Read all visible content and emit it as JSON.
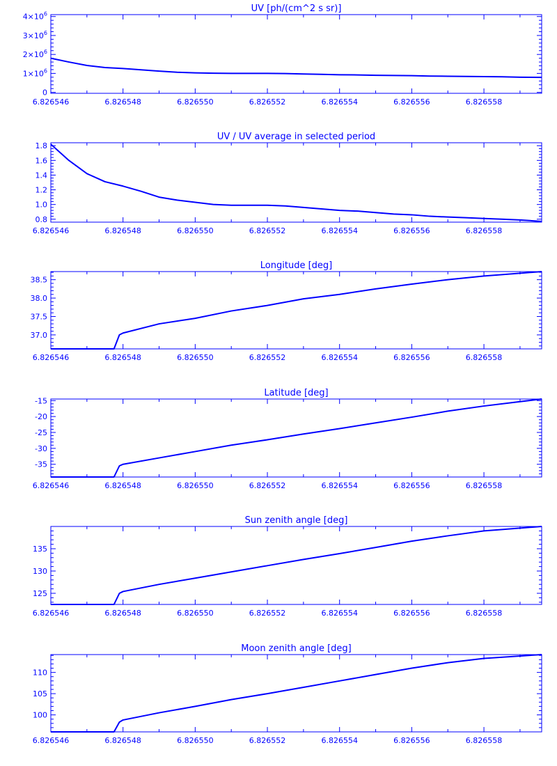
{
  "style": {
    "color": "#0000ff",
    "background": "#ffffff"
  },
  "x_tick_labels": [
    "6.826546",
    "6.826548",
    "6.826550",
    "6.826552",
    "6.826554",
    "6.826556",
    "6.826558"
  ],
  "chart_data": [
    {
      "type": "line",
      "title": "UV [ph/(cm^2 s sr)]",
      "xlim": [
        6.826546,
        6.8265596
      ],
      "ylim": [
        -50000.0,
        4100000.0
      ],
      "yticks": [
        0,
        1000000,
        2000000,
        3000000,
        4000000
      ],
      "ytick_labels": [
        {
          "mantissa": "0",
          "exp": ""
        },
        {
          "mantissa": "1×10",
          "exp": "6"
        },
        {
          "mantissa": "2×10",
          "exp": "6"
        },
        {
          "mantissa": "3×10",
          "exp": "6"
        },
        {
          "mantissa": "4×10",
          "exp": "6"
        }
      ],
      "x": [
        6.826546,
        6.8265465,
        6.826547,
        6.8265475,
        6.826548,
        6.8265485,
        6.826549,
        6.8265495,
        6.82655,
        6.8265505,
        6.826551,
        6.8265515,
        6.826552,
        6.8265525,
        6.826553,
        6.8265535,
        6.826554,
        6.8265545,
        6.826555,
        6.8265555,
        6.826556,
        6.8265565,
        6.826557,
        6.8265575,
        6.826558,
        6.8265585,
        6.826559,
        6.8265596
      ],
      "y": [
        1800000,
        1600000,
        1420000,
        1310000,
        1260000,
        1190000,
        1120000,
        1060000,
        1030000,
        1010000,
        1000000,
        1000000,
        1000000,
        990000,
        970000,
        950000,
        930000,
        920000,
        900000,
        890000,
        880000,
        860000,
        850000,
        840000,
        830000,
        820000,
        800000,
        790000
      ]
    },
    {
      "type": "line",
      "title": "UV / UV average in selected period",
      "xlim": [
        6.826546,
        6.8265596
      ],
      "ylim": [
        0.76,
        1.84
      ],
      "yticks": [
        0.8,
        1.0,
        1.2,
        1.4,
        1.6,
        1.8
      ],
      "ytick_labels": [
        "0.8",
        "1.0",
        "1.2",
        "1.4",
        "1.6",
        "1.8"
      ],
      "x": [
        6.826546,
        6.8265465,
        6.826547,
        6.8265475,
        6.826548,
        6.8265485,
        6.826549,
        6.8265495,
        6.82655,
        6.8265505,
        6.826551,
        6.8265515,
        6.826552,
        6.8265525,
        6.826553,
        6.8265535,
        6.826554,
        6.8265545,
        6.826555,
        6.8265555,
        6.826556,
        6.8265565,
        6.826557,
        6.8265575,
        6.826558,
        6.8265585,
        6.826559,
        6.8265596
      ],
      "y": [
        1.82,
        1.6,
        1.42,
        1.31,
        1.25,
        1.18,
        1.1,
        1.06,
        1.03,
        1.0,
        0.99,
        0.99,
        0.99,
        0.98,
        0.96,
        0.94,
        0.92,
        0.91,
        0.89,
        0.87,
        0.86,
        0.84,
        0.83,
        0.82,
        0.81,
        0.8,
        0.79,
        0.77
      ]
    },
    {
      "type": "line",
      "title": "Longitude [deg]",
      "xlim": [
        6.826546,
        6.8265596
      ],
      "ylim": [
        36.62,
        38.72
      ],
      "yticks": [
        37.0,
        37.5,
        38.0,
        38.5
      ],
      "ytick_labels": [
        "37.0",
        "37.5",
        "38.0",
        "38.5"
      ],
      "x": [
        6.826546,
        6.82654775,
        6.8265479,
        6.826548,
        6.826549,
        6.82655,
        6.826551,
        6.826552,
        6.826553,
        6.826554,
        6.826555,
        6.826556,
        6.826557,
        6.826558,
        6.8265596
      ],
      "y": [
        36.62,
        36.62,
        37.0,
        37.05,
        37.3,
        37.45,
        37.65,
        37.8,
        37.98,
        38.1,
        38.25,
        38.38,
        38.5,
        38.6,
        38.72
      ]
    },
    {
      "type": "line",
      "title": "Latitude [deg]",
      "xlim": [
        6.826546,
        6.8265596
      ],
      "ylim": [
        -39.0,
        -14.5
      ],
      "yticks": [
        -35,
        -30,
        -25,
        -20,
        -15
      ],
      "ytick_labels": [
        "-35",
        "-30",
        "-25",
        "-20",
        "-15"
      ],
      "x": [
        6.826546,
        6.82654775,
        6.8265479,
        6.826548,
        6.826549,
        6.82655,
        6.826551,
        6.826552,
        6.826553,
        6.826554,
        6.826555,
        6.826556,
        6.826557,
        6.826558,
        6.8265596
      ],
      "y": [
        -39.0,
        -39.0,
        -35.5,
        -35.0,
        -33.0,
        -31.0,
        -29.0,
        -27.3,
        -25.5,
        -23.8,
        -22.0,
        -20.2,
        -18.3,
        -16.7,
        -14.5
      ]
    },
    {
      "type": "line",
      "title": "Sun zenith angle [deg]",
      "xlim": [
        6.826546,
        6.8265596
      ],
      "ylim": [
        122.5,
        140.0
      ],
      "yticks": [
        125,
        130,
        135
      ],
      "ytick_labels": [
        "125",
        "130",
        "135"
      ],
      "x": [
        6.826546,
        6.82654775,
        6.8265479,
        6.826548,
        6.826549,
        6.82655,
        6.826551,
        6.826552,
        6.826553,
        6.826554,
        6.826555,
        6.826556,
        6.826557,
        6.826558,
        6.8265596
      ],
      "y": [
        122.5,
        122.5,
        125.0,
        125.4,
        127.0,
        128.4,
        129.8,
        131.2,
        132.6,
        133.9,
        135.3,
        136.7,
        137.9,
        139.0,
        140.0
      ]
    },
    {
      "type": "line",
      "title": "Moon zenith angle [deg]",
      "xlim": [
        6.826546,
        6.8265596
      ],
      "ylim": [
        96.0,
        114.2
      ],
      "yticks": [
        100,
        105,
        110
      ],
      "ytick_labels": [
        "100",
        "105",
        "110"
      ],
      "x": [
        6.826546,
        6.82654775,
        6.8265479,
        6.826548,
        6.826549,
        6.82655,
        6.826551,
        6.826552,
        6.826553,
        6.826554,
        6.826555,
        6.826556,
        6.826557,
        6.826558,
        6.8265596
      ],
      "y": [
        96.0,
        96.0,
        98.3,
        98.8,
        100.5,
        102.0,
        103.6,
        105.0,
        106.5,
        108.0,
        109.5,
        111.0,
        112.3,
        113.3,
        114.2
      ]
    }
  ]
}
